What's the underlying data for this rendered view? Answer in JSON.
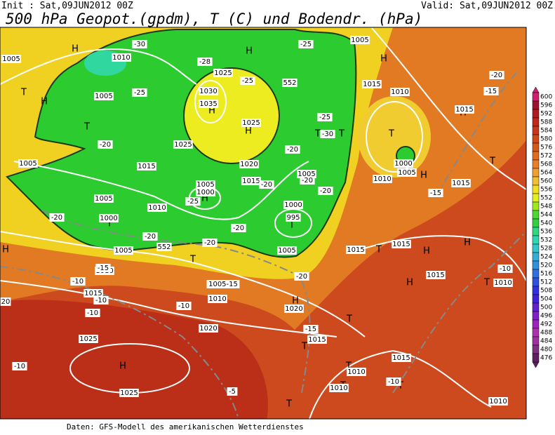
{
  "header": {
    "init": "Init : Sat,09JUN2012 00Z",
    "valid": "Valid: Sat,09JUN2012 00Z",
    "title": "500 hPa Geopot.(gpdm), T (C) und Bodendr. (hPa)"
  },
  "footer": "Daten: GFS-Modell des amerikanischen Wetterdienstes",
  "colorbar": {
    "levels": [
      600,
      596,
      592,
      588,
      584,
      580,
      576,
      572,
      568,
      564,
      560,
      556,
      552,
      548,
      544,
      540,
      536,
      532,
      528,
      524,
      520,
      516,
      512,
      508,
      504,
      500,
      496,
      492,
      488,
      484,
      480,
      476
    ],
    "colors": [
      "#d02070",
      "#a01030",
      "#b01c24",
      "#c02818",
      "#c83818",
      "#d04818",
      "#d85818",
      "#e06c1c",
      "#e8802a",
      "#f0a030",
      "#f0c030",
      "#f0e020",
      "#e0f020",
      "#a0e818",
      "#50d830",
      "#30d040",
      "#30d880",
      "#30d8b0",
      "#30c8c8",
      "#30b0d8",
      "#3090e0",
      "#3070e0",
      "#3050e0",
      "#3030e0",
      "#4020d8",
      "#6020d0",
      "#8020c8",
      "#a020c0",
      "#b030b0",
      "#a030a0",
      "#803080",
      "#602060"
    ]
  },
  "map": {
    "labels": [
      "H",
      "H",
      "H",
      "H",
      "T",
      "T",
      "H",
      "H",
      "T",
      "T",
      "T",
      "H",
      "T",
      "H",
      "T",
      "T",
      "T",
      "T",
      "H",
      "H",
      "T",
      "H",
      "T",
      "H",
      "H",
      "T",
      "T",
      "H",
      "T",
      "T",
      "T",
      "T",
      "H",
      "1010",
      "1005",
      "1005",
      "1025",
      "1030",
      "1035",
      "1025",
      "1025",
      "1020",
      "1015",
      "1005",
      "1005",
      "1000",
      "1010",
      "1005",
      "1000",
      "1015",
      "1005",
      "1000",
      "995",
      "1005",
      "1005",
      "1010",
      "1015",
      "1010",
      "1020",
      "1015",
      "1015",
      "1015",
      "1010",
      "1015",
      "1000",
      "1005",
      "1010",
      "1015",
      "1005",
      "1015",
      "1010",
      "1020",
      "1015",
      "1010",
      "1015",
      "1010",
      "1025",
      "1025",
      "1010",
      "1005-15",
      "-30",
      "-25",
      "-25",
      "-25",
      "-28",
      "-20",
      "-20",
      "-25",
      "-30",
      "-20",
      "-20",
      "-20",
      "-25",
      "-20",
      "-20",
      "-20",
      "-20",
      "-15",
      "-10",
      "-10",
      "-10",
      "-10",
      "-10",
      "-5",
      "-10",
      "-15",
      "-20",
      "-15",
      "-15",
      "-20",
      "-10",
      "20",
      "552",
      "552"
    ]
  }
}
